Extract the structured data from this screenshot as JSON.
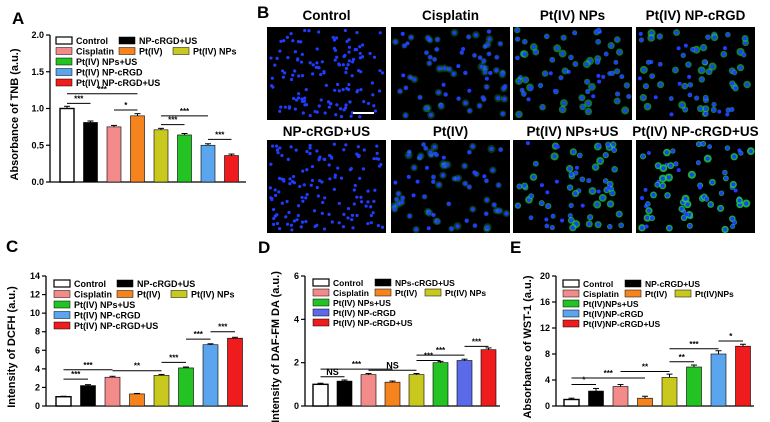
{
  "panel_letters": [
    "A",
    "B",
    "C",
    "D",
    "E"
  ],
  "chart_data": [
    {
      "type": "bar",
      "panel": "A",
      "ylabel": "Absorbance of TNB (a.u.)",
      "ylim": [
        0,
        2.0
      ],
      "yticks": [
        0.0,
        0.5,
        1.0,
        1.5,
        2.0
      ],
      "tick_labels": [
        "0.0",
        "0.5",
        "1.0",
        "1.5",
        "2.0"
      ],
      "categories": [
        "Control",
        "NP-cRGD+US",
        "Cisplatin",
        "Pt(IV)",
        "Pt(IV) NPs",
        "Pt(IV) NPs+US",
        "Pt(IV) NP-cRGD",
        "Pt(IV) NP-cRGD+US"
      ],
      "legend_rows": [
        [
          "Control",
          "NP-cRGD+US"
        ],
        [
          "Cisplatin",
          "Pt(IV)",
          "Pt(IV) NPs"
        ],
        [
          "Pt(IV) NPs+US"
        ],
        [
          "Pt(IV) NP-cRGD"
        ],
        [
          "Pt(IV) NP-cRGD+US"
        ]
      ],
      "values": [
        1.0,
        0.81,
        0.75,
        0.9,
        0.71,
        0.64,
        0.5,
        0.36
      ],
      "errors": [
        0.03,
        0.02,
        0.02,
        0.03,
        0.02,
        0.02,
        0.02,
        0.02
      ],
      "colors": [
        "#ffffff",
        "#000000",
        "#f48b8b",
        "#f5841f",
        "#c8c81f",
        "#22c322",
        "#5aa5ee",
        "#ee1c1c"
      ],
      "significance": [
        {
          "from": 0,
          "to": 1,
          "label": "***",
          "y": 1.07
        },
        {
          "from": 0,
          "to": 3,
          "label": "***",
          "y": 1.2
        },
        {
          "from": 2,
          "to": 3,
          "label": "*",
          "y": 0.98
        },
        {
          "from": 4,
          "to": 5,
          "label": "***",
          "y": 0.78
        },
        {
          "from": 4,
          "to": 6,
          "label": "***",
          "y": 0.9
        },
        {
          "from": 6,
          "to": 7,
          "label": "***",
          "y": 0.58
        }
      ]
    },
    {
      "type": "bar",
      "panel": "C",
      "ylabel": "Intensity of DCFH (a.u.)",
      "ylim": [
        0,
        14
      ],
      "yticks": [
        0,
        2,
        4,
        6,
        8,
        10,
        12,
        14
      ],
      "tick_labels": [
        "0",
        "2",
        "4",
        "6",
        "8",
        "10",
        "12",
        "14"
      ],
      "categories": [
        "Control",
        "NP-cRGD+US",
        "Cisplatin",
        "Pt(IV)",
        "Pt(IV) NPs",
        "Pt(IV) NPs+US",
        "Pt(IV) NP-cRGD",
        "Pt(IV) NP-cRGD+US"
      ],
      "legend_rows": [
        [
          "Control",
          "NP-cRGD+US"
        ],
        [
          "Cisplatin",
          "Pt(IV)",
          "Pt(IV) NPs"
        ],
        [
          "Pt(IV) NPs+US"
        ],
        [
          "Pt(IV) NP-cRGD"
        ],
        [
          "Pt(IV) NP-cRGD+US"
        ]
      ],
      "values": [
        1.0,
        2.2,
        3.1,
        1.3,
        3.3,
        4.1,
        6.6,
        7.3
      ],
      "errors": [
        0.05,
        0.1,
        0.1,
        0.05,
        0.1,
        0.1,
        0.1,
        0.1
      ],
      "colors": [
        "#ffffff",
        "#000000",
        "#f48b8b",
        "#f5841f",
        "#c8c81f",
        "#22c322",
        "#5aa5ee",
        "#ee1c1c"
      ],
      "significance": [
        {
          "from": 0,
          "to": 1,
          "label": "***",
          "y": 2.9
        },
        {
          "from": 0,
          "to": 2,
          "label": "***",
          "y": 3.9
        },
        {
          "from": 2,
          "to": 4,
          "label": "**",
          "y": 3.8
        },
        {
          "from": 4,
          "to": 5,
          "label": "***",
          "y": 4.7
        },
        {
          "from": 5,
          "to": 6,
          "label": "***",
          "y": 7.2
        },
        {
          "from": 6,
          "to": 7,
          "label": "***",
          "y": 8.0
        }
      ]
    },
    {
      "type": "bar",
      "panel": "D",
      "ylabel": "Intensity of DAF-FM DA (a.u.)",
      "ylim": [
        0,
        6
      ],
      "yticks": [
        0,
        2,
        4,
        6
      ],
      "tick_labels": [
        "0",
        "2",
        "4",
        "6"
      ],
      "categories": [
        "Control",
        "NPs-cRGD+US",
        "Cisplatin",
        "Pt(IV)",
        "Pt(IV) NPs",
        "Pt(IV) NPs+US",
        "Pt(IV) NP-cRGD",
        "Pt(IV) NP-cRGD+US"
      ],
      "legend_rows": [
        [
          "Control",
          "NPs-cRGD+US"
        ],
        [
          "Cisplatin",
          "Pt(IV)",
          "Pt(IV) NPs"
        ],
        [
          "Pt(IV) NPs+US"
        ],
        [
          "Pt(IV) NP-cRGD"
        ],
        [
          "Pt(IV) NP-cRGD+US"
        ]
      ],
      "values": [
        1.0,
        1.15,
        1.45,
        1.1,
        1.45,
        2.0,
        2.1,
        2.6
      ],
      "errors": [
        0.05,
        0.05,
        0.05,
        0.05,
        0.05,
        0.06,
        0.06,
        0.08
      ],
      "colors": [
        "#ffffff",
        "#000000",
        "#f48b8b",
        "#f5841f",
        "#c8c81f",
        "#22c322",
        "#5a6ae8",
        "#ee1c1c"
      ],
      "significance": [
        {
          "from": 0,
          "to": 1,
          "label": "NS",
          "y": 1.35
        },
        {
          "from": 0,
          "to": 3,
          "label": "***",
          "y": 1.7
        },
        {
          "from": 2,
          "to": 4,
          "label": "NS",
          "y": 1.65
        },
        {
          "from": 4,
          "to": 5,
          "label": "***",
          "y": 2.1
        },
        {
          "from": 4,
          "to": 6,
          "label": "***",
          "y": 2.35
        },
        {
          "from": 6,
          "to": 7,
          "label": "***",
          "y": 2.75
        }
      ]
    },
    {
      "type": "bar",
      "panel": "E",
      "ylabel": "Absorbance of WST-1 (a.u.)",
      "ylim": [
        0,
        20
      ],
      "yticks": [
        0,
        4,
        8,
        12,
        16,
        20
      ],
      "tick_labels": [
        "0",
        "4",
        "8",
        "12",
        "16",
        "20"
      ],
      "categories": [
        "Control",
        "NP-cRGD+US",
        "Cisplatin",
        "Pt(IV)",
        "Pt(IV)NPs",
        "Pt(IV)NPs+US",
        "Pt(IV)NP-cRGD",
        "Pt(IV)NP-cRGD+US"
      ],
      "legend_rows": [
        [
          "Control",
          "NP-cRGD+US"
        ],
        [
          "Cisplatin",
          "Pt(IV)",
          "Pt(IV)NPs"
        ],
        [
          "Pt(IV)NPs+US"
        ],
        [
          "Pt(IV)NP-cRGD"
        ],
        [
          "Pt(IV)NP-cRGD+US"
        ]
      ],
      "values": [
        1.0,
        2.3,
        3.0,
        1.2,
        4.4,
        6.0,
        8.0,
        9.2
      ],
      "errors": [
        0.2,
        0.4,
        0.3,
        0.3,
        0.5,
        0.3,
        0.5,
        0.3
      ],
      "colors": [
        "#ffffff",
        "#000000",
        "#f48b8b",
        "#f5841f",
        "#c8c81f",
        "#22c322",
        "#5aa5ee",
        "#ee1c1c"
      ],
      "significance": [
        {
          "from": 0,
          "to": 1,
          "label": "*",
          "y": 3.3
        },
        {
          "from": 0,
          "to": 3,
          "label": "***",
          "y": 4.3
        },
        {
          "from": 2,
          "to": 4,
          "label": "**",
          "y": 5.3
        },
        {
          "from": 4,
          "to": 5,
          "label": "**",
          "y": 6.8
        },
        {
          "from": 4,
          "to": 6,
          "label": "***",
          "y": 8.8
        },
        {
          "from": 6,
          "to": 7,
          "label": "*",
          "y": 10.0
        }
      ]
    }
  ],
  "micrographs": {
    "panel": "B",
    "labels": [
      "Control",
      "Cisplatin",
      "Pt(IV) NPs",
      "Pt(IV) NP-cRGD",
      "NP-cRGD+US",
      "Pt(IV)",
      "Pt(IV) NPs+US",
      "Pt(IV) NP-cRGD+US"
    ],
    "green_intensity": [
      0.0,
      0.05,
      0.5,
      0.6,
      0.0,
      0.05,
      0.75,
      0.95
    ]
  }
}
